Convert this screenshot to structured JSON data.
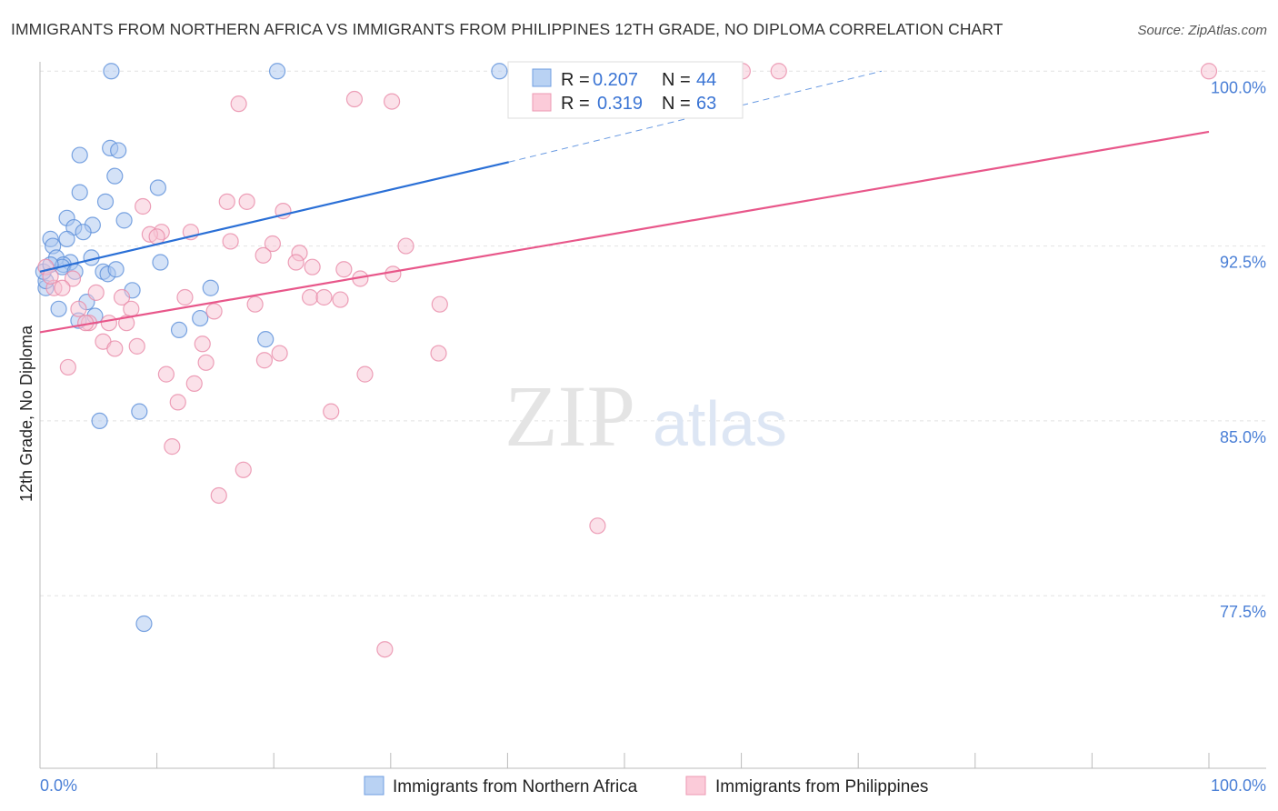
{
  "title": "IMMIGRANTS FROM NORTHERN AFRICA VS IMMIGRANTS FROM PHILIPPINES 12TH GRADE, NO DIPLOMA CORRELATION CHART",
  "source": "Source: ZipAtlas.com",
  "watermark": "ZIPatlas",
  "chart_data": {
    "type": "scatter",
    "title": "IMMIGRANTS FROM NORTHERN AFRICA VS IMMIGRANTS FROM PHILIPPINES 12TH GRADE, NO DIPLOMA CORRELATION CHART",
    "xlabel": "",
    "ylabel": "12th Grade, No Diploma",
    "xlim": [
      0,
      100
    ],
    "ylim": [
      70.1,
      100.4
    ],
    "x_tick_labels": [
      "0.0%",
      "100.0%"
    ],
    "y_ticks": [
      100,
      92.5,
      85,
      77.5
    ],
    "y_tick_labels": [
      "100.0%",
      "92.5%",
      "85.0%",
      "77.5%"
    ],
    "grid": true,
    "legend_placement": "top-center",
    "series": [
      {
        "name": "Immigrants from Northern Africa",
        "color": "#5b8fd9",
        "fill": "#a9c6ef",
        "line_color": "#2a6fd6",
        "R": "0.207",
        "N": "44",
        "trend": {
          "x0": 0,
          "y0": 91.4,
          "x1": 40.1,
          "y1": 96.1,
          "dashed_to_x": 72,
          "dashed_to_y": 100
        },
        "points": [
          [
            6.1,
            100
          ],
          [
            20.3,
            100
          ],
          [
            39.3,
            100
          ],
          [
            3.4,
            96.4
          ],
          [
            6.0,
            96.7
          ],
          [
            6.7,
            96.6
          ],
          [
            6.4,
            95.5
          ],
          [
            3.4,
            94.8
          ],
          [
            5.6,
            94.4
          ],
          [
            10.1,
            95.0
          ],
          [
            2.3,
            93.7
          ],
          [
            7.2,
            93.6
          ],
          [
            4.5,
            93.4
          ],
          [
            2.9,
            93.3
          ],
          [
            3.7,
            93.1
          ],
          [
            0.9,
            92.8
          ],
          [
            1.1,
            92.5
          ],
          [
            2.3,
            92.8
          ],
          [
            1.4,
            92.0
          ],
          [
            2.6,
            91.8
          ],
          [
            4.4,
            92.0
          ],
          [
            2.0,
            91.7
          ],
          [
            1.9,
            91.6
          ],
          [
            3.0,
            91.4
          ],
          [
            5.4,
            91.4
          ],
          [
            5.8,
            91.3
          ],
          [
            6.5,
            91.5
          ],
          [
            10.3,
            91.8
          ],
          [
            14.6,
            90.7
          ],
          [
            7.9,
            90.6
          ],
          [
            4.0,
            90.1
          ],
          [
            1.6,
            89.8
          ],
          [
            3.3,
            89.3
          ],
          [
            4.7,
            89.5
          ],
          [
            11.9,
            88.9
          ],
          [
            13.7,
            89.4
          ],
          [
            19.3,
            88.5
          ],
          [
            5.1,
            85.0
          ],
          [
            8.5,
            85.4
          ],
          [
            8.9,
            76.3
          ],
          [
            0.5,
            90.7
          ],
          [
            0.5,
            91.0
          ],
          [
            0.3,
            91.4
          ],
          [
            0.9,
            91.7
          ]
        ]
      },
      {
        "name": "Immigrants from Philippines",
        "color": "#e98aa8",
        "fill": "#f7c3d3",
        "line_color": "#e8578a",
        "R": "0.319",
        "N": "63",
        "trend": {
          "x0": 0,
          "y0": 88.8,
          "x1": 100,
          "y1": 97.4
        },
        "points": [
          [
            100,
            100
          ],
          [
            60.1,
            100
          ],
          [
            63.2,
            100
          ],
          [
            17.0,
            98.6
          ],
          [
            26.9,
            98.8
          ],
          [
            30.1,
            98.7
          ],
          [
            8.8,
            94.2
          ],
          [
            16.0,
            94.4
          ],
          [
            17.7,
            94.4
          ],
          [
            20.8,
            94.0
          ],
          [
            10.4,
            93.1
          ],
          [
            12.9,
            93.1
          ],
          [
            9.4,
            93.0
          ],
          [
            10.0,
            92.9
          ],
          [
            16.3,
            92.7
          ],
          [
            19.9,
            92.6
          ],
          [
            31.3,
            92.5
          ],
          [
            19.1,
            92.1
          ],
          [
            22.2,
            92.2
          ],
          [
            21.9,
            91.8
          ],
          [
            23.3,
            91.6
          ],
          [
            26.0,
            91.5
          ],
          [
            27.4,
            91.1
          ],
          [
            30.2,
            91.3
          ],
          [
            2.8,
            91.1
          ],
          [
            1.2,
            90.7
          ],
          [
            1.9,
            90.7
          ],
          [
            4.8,
            90.5
          ],
          [
            7.0,
            90.3
          ],
          [
            12.4,
            90.3
          ],
          [
            23.1,
            90.3
          ],
          [
            24.3,
            90.3
          ],
          [
            25.7,
            90.2
          ],
          [
            18.4,
            90.0
          ],
          [
            34.2,
            90.0
          ],
          [
            14.9,
            89.7
          ],
          [
            7.8,
            89.8
          ],
          [
            3.3,
            89.8
          ],
          [
            4.2,
            89.2
          ],
          [
            5.9,
            89.2
          ],
          [
            7.4,
            89.2
          ],
          [
            3.9,
            89.2
          ],
          [
            5.4,
            88.4
          ],
          [
            6.4,
            88.1
          ],
          [
            8.3,
            88.2
          ],
          [
            13.9,
            88.3
          ],
          [
            20.5,
            87.9
          ],
          [
            19.2,
            87.6
          ],
          [
            14.2,
            87.5
          ],
          [
            34.1,
            87.9
          ],
          [
            2.4,
            87.3
          ],
          [
            10.8,
            87.0
          ],
          [
            27.8,
            87.0
          ],
          [
            13.2,
            86.6
          ],
          [
            11.8,
            85.8
          ],
          [
            24.9,
            85.4
          ],
          [
            11.3,
            83.9
          ],
          [
            17.4,
            82.9
          ],
          [
            15.3,
            81.8
          ],
          [
            47.7,
            80.5
          ],
          [
            29.5,
            75.2
          ],
          [
            0.5,
            91.6
          ],
          [
            0.9,
            91.2
          ]
        ]
      }
    ]
  },
  "legend": {
    "r_label": "R =",
    "n_label": "N ="
  }
}
